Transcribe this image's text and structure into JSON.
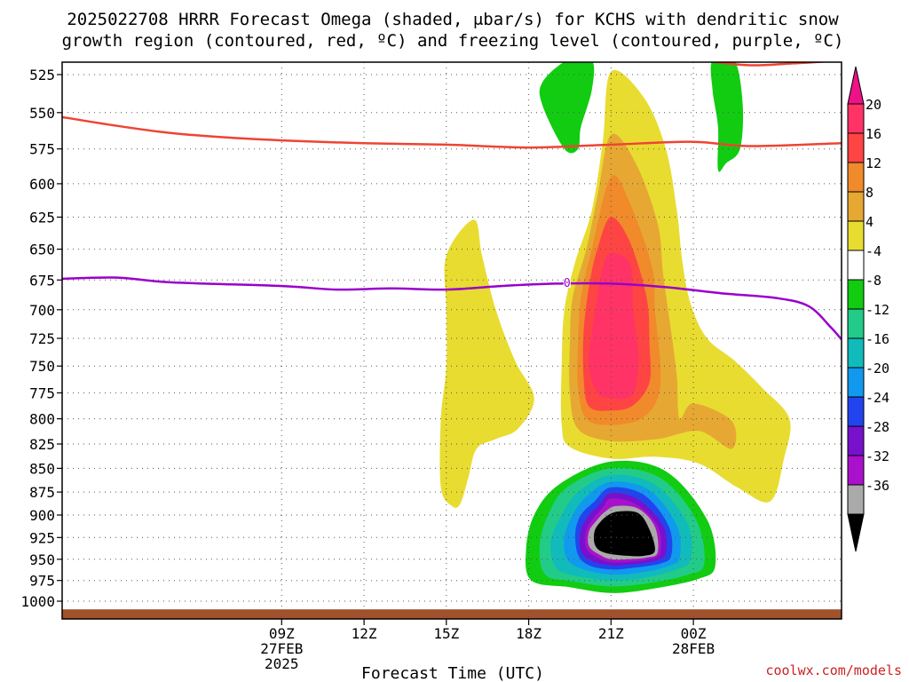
{
  "title_line1": "2025022708 HRRR Forecast Omega (shaded, μbar/s) for KCHS with dendritic snow",
  "title_line2": "growth region (contoured, red, ºC) and freezing level (contoured, purple, ºC)",
  "credit": "coolwx.com/models",
  "colors": {
    "dgz_contour": "#ee4433",
    "freezing_contour": "#9900cc",
    "ground": "#a0522d",
    "credit": "#cc2222"
  },
  "chart_data": {
    "type": "contour",
    "xlabel": "Forecast Time (UTC)",
    "ylabel": "",
    "x_unit": "hours since 2025-02-27 07Z",
    "xlim": [
      1,
      29.4
    ],
    "ylim_hPa": [
      515,
      1005
    ],
    "grid": true,
    "x_ticks": [
      {
        "hour": 9,
        "lines": [
          "09Z",
          "27FEB",
          "2025"
        ]
      },
      {
        "hour": 12,
        "lines": [
          "12Z"
        ]
      },
      {
        "hour": 15,
        "lines": [
          "15Z"
        ]
      },
      {
        "hour": 18,
        "lines": [
          "18Z"
        ]
      },
      {
        "hour": 21,
        "lines": [
          "21Z"
        ]
      },
      {
        "hour": 24,
        "lines": [
          "00Z",
          "28FEB"
        ]
      }
    ],
    "y_ticks": [
      525,
      550,
      575,
      600,
      625,
      650,
      675,
      700,
      725,
      750,
      775,
      800,
      825,
      850,
      875,
      900,
      925,
      950,
      975,
      1000
    ],
    "colorbar": {
      "labels": [
        "20",
        "16",
        "12",
        "8",
        "4",
        "-4",
        "-8",
        "-12",
        "-16",
        "-20",
        "-24",
        "-28",
        "-32",
        "-36"
      ],
      "bins": [
        {
          "range": "16 to 20",
          "color": "#ff3366"
        },
        {
          "range": "12 to 16",
          "color": "#ff4444"
        },
        {
          "range": "8 to 12",
          "color": "#f08a2a"
        },
        {
          "range": "4 to 8",
          "color": "#e6a833"
        },
        {
          "range": "0 to 4",
          "color": "#e8dc30"
        },
        {
          "range": "-4 to 4",
          "color": "#ffffff"
        },
        {
          "range": "-8 to -4",
          "color": "#11cc11"
        },
        {
          "range": "-12 to -8",
          "color": "#22cc88"
        },
        {
          "range": "-16 to -12",
          "color": "#11bbbb"
        },
        {
          "range": "-20 to -16",
          "color": "#1199ee"
        },
        {
          "range": "-24 to -20",
          "color": "#2244ee"
        },
        {
          "range": "-28 to -24",
          "color": "#7711cc"
        },
        {
          "range": "-32 to -28",
          "color": "#aa11cc"
        },
        {
          "range": "-36 to -32",
          "color": "#aaaaaa"
        }
      ],
      "top_arrow_color": "#ee1188",
      "bottom_arrow_color": "#000000"
    },
    "contours": {
      "dgz_line": {
        "color": "#ee4433",
        "points": [
          [
            1,
            553
          ],
          [
            3,
            559
          ],
          [
            5,
            564
          ],
          [
            7,
            567
          ],
          [
            9,
            569
          ],
          [
            12,
            571
          ],
          [
            15,
            572
          ],
          [
            18,
            574
          ],
          [
            21,
            572
          ],
          [
            24,
            570
          ],
          [
            26,
            573
          ],
          [
            29.4,
            571
          ]
        ]
      },
      "dgz_line_upper": {
        "color": "#ee4433",
        "points": [
          [
            24.3,
            516
          ],
          [
            26,
            519
          ],
          [
            27.5,
            518
          ],
          [
            29.4,
            516
          ]
        ]
      },
      "freezing_line": {
        "color": "#9900cc",
        "label": "0",
        "label_at": [
          19.4,
          677
        ],
        "points": [
          [
            1,
            674
          ],
          [
            3,
            673
          ],
          [
            5,
            677
          ],
          [
            9,
            680
          ],
          [
            11,
            683
          ],
          [
            13,
            682
          ],
          [
            15,
            683
          ],
          [
            17,
            680
          ],
          [
            19,
            678
          ],
          [
            21,
            678
          ],
          [
            23,
            681
          ],
          [
            25,
            686
          ],
          [
            27,
            690
          ],
          [
            28.2,
            697
          ],
          [
            29,
            715
          ],
          [
            29.4,
            726
          ]
        ]
      }
    },
    "shaded_regions": [
      {
        "bin": "0 to 4",
        "color": "#e8dc30",
        "points": [
          [
            15,
            655
          ],
          [
            16,
            627
          ],
          [
            16.3,
            655
          ],
          [
            16.8,
            700
          ],
          [
            17.5,
            745
          ],
          [
            18.2,
            780
          ],
          [
            17.6,
            810
          ],
          [
            16.8,
            820
          ],
          [
            16.1,
            830
          ],
          [
            15.8,
            860
          ],
          [
            15.5,
            888
          ],
          [
            15.2,
            890
          ],
          [
            14.8,
            870
          ],
          [
            14.8,
            800
          ],
          [
            15,
            750
          ],
          [
            15,
            700
          ]
        ]
      },
      {
        "bin": "0 to 4",
        "color": "#e8dc30",
        "points": [
          [
            21,
            523
          ],
          [
            22.2,
            540
          ],
          [
            23,
            575
          ],
          [
            23.4,
            620
          ],
          [
            23.6,
            660
          ],
          [
            23.9,
            695
          ],
          [
            24.5,
            725
          ],
          [
            25.5,
            745
          ],
          [
            26.5,
            770
          ],
          [
            27.5,
            800
          ],
          [
            27.3,
            840
          ],
          [
            26.8,
            885
          ],
          [
            25.6,
            870
          ],
          [
            24.2,
            845
          ],
          [
            22.6,
            838
          ],
          [
            21,
            840
          ],
          [
            19.5,
            828
          ],
          [
            19.2,
            805
          ],
          [
            19.2,
            750
          ],
          [
            19.3,
            700
          ],
          [
            19.7,
            660
          ],
          [
            20.3,
            620
          ],
          [
            20.7,
            570
          ]
        ]
      },
      {
        "bin": "4 to 8",
        "color": "#e6a833",
        "points": [
          [
            21,
            565
          ],
          [
            21.9,
            585
          ],
          [
            22.7,
            630
          ],
          [
            22.9,
            670
          ],
          [
            23.2,
            720
          ],
          [
            23.4,
            760
          ],
          [
            23.5,
            800
          ],
          [
            24,
            785
          ],
          [
            25.4,
            802
          ],
          [
            25.4,
            830
          ],
          [
            24.2,
            812
          ],
          [
            22.7,
            820
          ],
          [
            21,
            822
          ],
          [
            19.8,
            810
          ],
          [
            19.5,
            775
          ],
          [
            19.5,
            730
          ],
          [
            19.6,
            690
          ],
          [
            20.1,
            650
          ],
          [
            20.5,
            610
          ]
        ]
      },
      {
        "bin": "8 to 12",
        "color": "#f08a2a",
        "points": [
          [
            21,
            595
          ],
          [
            21.7,
            615
          ],
          [
            22.5,
            665
          ],
          [
            22.6,
            700
          ],
          [
            22.8,
            750
          ],
          [
            22.7,
            780
          ],
          [
            22.1,
            800
          ],
          [
            21,
            806
          ],
          [
            20.1,
            800
          ],
          [
            19.8,
            770
          ],
          [
            19.8,
            730
          ],
          [
            19.9,
            690
          ],
          [
            20.3,
            650
          ]
        ]
      },
      {
        "bin": "12 to 16",
        "color": "#ff4444",
        "points": [
          [
            21,
            625
          ],
          [
            21.7,
            645
          ],
          [
            22.3,
            690
          ],
          [
            22.4,
            730
          ],
          [
            22.4,
            765
          ],
          [
            21.8,
            787
          ],
          [
            21,
            792
          ],
          [
            20.2,
            788
          ],
          [
            20,
            760
          ],
          [
            20,
            720
          ],
          [
            20.2,
            680
          ],
          [
            20.5,
            650
          ]
        ]
      },
      {
        "bin": "16 to 20",
        "color": "#ff3366",
        "points": [
          [
            21,
            653
          ],
          [
            21.7,
            662
          ],
          [
            21.8,
            700
          ],
          [
            22,
            740
          ],
          [
            21.9,
            770
          ],
          [
            21.6,
            780
          ],
          [
            21,
            780
          ],
          [
            20.5,
            775
          ],
          [
            20.2,
            750
          ],
          [
            20.3,
            720
          ],
          [
            20.5,
            690
          ],
          [
            20.7,
            665
          ]
        ]
      },
      {
        "bin": "-8 to -4",
        "color": "#11cc11",
        "points": [
          [
            19.4,
            516
          ],
          [
            20.3,
            516
          ],
          [
            20.3,
            535
          ],
          [
            19.9,
            560
          ],
          [
            19.8,
            575
          ],
          [
            19.3,
            575
          ],
          [
            18.5,
            545
          ],
          [
            18.5,
            530
          ]
        ]
      },
      {
        "bin": "-8 to -4",
        "color": "#11cc11",
        "points": [
          [
            24.7,
            516
          ],
          [
            25.5,
            516
          ],
          [
            25.8,
            545
          ],
          [
            25.7,
            575
          ],
          [
            25.2,
            585
          ],
          [
            24.9,
            590
          ],
          [
            24.9,
            560
          ],
          [
            24.7,
            535
          ]
        ]
      },
      {
        "bin": "-8 to -4",
        "color": "#11cc11",
        "points": [
          [
            21,
            843
          ],
          [
            23,
            853
          ],
          [
            24.5,
            905
          ],
          [
            24.8,
            957
          ],
          [
            24.2,
            973
          ],
          [
            22.5,
            985
          ],
          [
            21,
            990
          ],
          [
            19.5,
            983
          ],
          [
            18.1,
            975
          ],
          [
            17.9,
            940
          ],
          [
            18.2,
            900
          ],
          [
            19.1,
            867
          ]
        ]
      },
      {
        "bin": "-12 to -8",
        "color": "#22cc88",
        "points": [
          [
            21,
            850
          ],
          [
            22.8,
            860
          ],
          [
            24.1,
            905
          ],
          [
            24.4,
            955
          ],
          [
            23.8,
            968
          ],
          [
            22.4,
            978
          ],
          [
            21,
            982
          ],
          [
            19.6,
            976
          ],
          [
            18.6,
            968
          ],
          [
            18.4,
            935
          ],
          [
            18.7,
            900
          ],
          [
            19.4,
            870
          ]
        ]
      },
      {
        "bin": "-16 to -12",
        "color": "#11bbbb",
        "points": [
          [
            21,
            857
          ],
          [
            22.6,
            867
          ],
          [
            23.8,
            910
          ],
          [
            23.9,
            950
          ],
          [
            23.4,
            962
          ],
          [
            22.2,
            972
          ],
          [
            21,
            975
          ],
          [
            19.8,
            970
          ],
          [
            19,
            960
          ],
          [
            18.8,
            930
          ],
          [
            19.2,
            900
          ],
          [
            19.8,
            875
          ]
        ]
      },
      {
        "bin": "-20 to -16",
        "color": "#1199ee",
        "points": [
          [
            21,
            864
          ],
          [
            22.4,
            873
          ],
          [
            23.4,
            912
          ],
          [
            23.5,
            948
          ],
          [
            23.1,
            958
          ],
          [
            22,
            966
          ],
          [
            21,
            968
          ],
          [
            20,
            962
          ],
          [
            19.4,
            950
          ],
          [
            19.3,
            925
          ],
          [
            19.6,
            900
          ],
          [
            20.1,
            880
          ]
        ]
      },
      {
        "bin": "-24 to -20",
        "color": "#2244ee",
        "points": [
          [
            21,
            870
          ],
          [
            22.2,
            878
          ],
          [
            23.1,
            912
          ],
          [
            23.2,
            945
          ],
          [
            22.8,
            955
          ],
          [
            21.8,
            960
          ],
          [
            21,
            962
          ],
          [
            20.2,
            957
          ],
          [
            19.8,
            945
          ],
          [
            19.7,
            920
          ],
          [
            19.9,
            900
          ],
          [
            20.4,
            885
          ]
        ]
      },
      {
        "bin": "-28 to -24",
        "color": "#7711cc",
        "points": [
          [
            21,
            876
          ],
          [
            22,
            883
          ],
          [
            22.9,
            912
          ],
          [
            23,
            943
          ],
          [
            22.6,
            952
          ],
          [
            21.7,
            956
          ],
          [
            21,
            957
          ],
          [
            20.3,
            952
          ],
          [
            19.9,
            940
          ],
          [
            19.9,
            917
          ],
          [
            20.2,
            900
          ],
          [
            20.6,
            888
          ]
        ]
      },
      {
        "bin": "-32 to -28",
        "color": "#aa11cc",
        "points": [
          [
            21,
            882
          ],
          [
            21.9,
            888
          ],
          [
            22.7,
            912
          ],
          [
            22.8,
            942
          ],
          [
            22.4,
            950
          ],
          [
            21.6,
            953
          ],
          [
            21,
            953
          ],
          [
            20.5,
            948
          ],
          [
            20.1,
            937
          ],
          [
            20.1,
            917
          ],
          [
            20.4,
            902
          ],
          [
            20.7,
            892
          ]
        ]
      },
      {
        "bin": "-36 to -32",
        "color": "#aaaaaa",
        "points": [
          [
            21.2,
            890
          ],
          [
            22,
            893
          ],
          [
            22.6,
            913
          ],
          [
            22.7,
            942
          ],
          [
            22.3,
            948
          ],
          [
            21.6,
            950
          ],
          [
            21,
            950
          ],
          [
            20.6,
            945
          ],
          [
            20.2,
            935
          ],
          [
            20.2,
            918
          ],
          [
            20.5,
            905
          ],
          [
            20.8,
            896
          ]
        ]
      },
      {
        "bin": "< -36",
        "color": "#000000",
        "points": [
          [
            21.3,
            896
          ],
          [
            22,
            898
          ],
          [
            22.4,
            916
          ],
          [
            22.6,
            940
          ],
          [
            22.2,
            946
          ],
          [
            21.6,
            946
          ],
          [
            21,
            944
          ],
          [
            20.6,
            940
          ],
          [
            20.4,
            932
          ],
          [
            20.4,
            918
          ],
          [
            20.6,
            908
          ],
          [
            20.9,
            900
          ]
        ]
      }
    ],
    "ground": {
      "color": "#a0522d",
      "p_top_hPa": 1010
    }
  }
}
